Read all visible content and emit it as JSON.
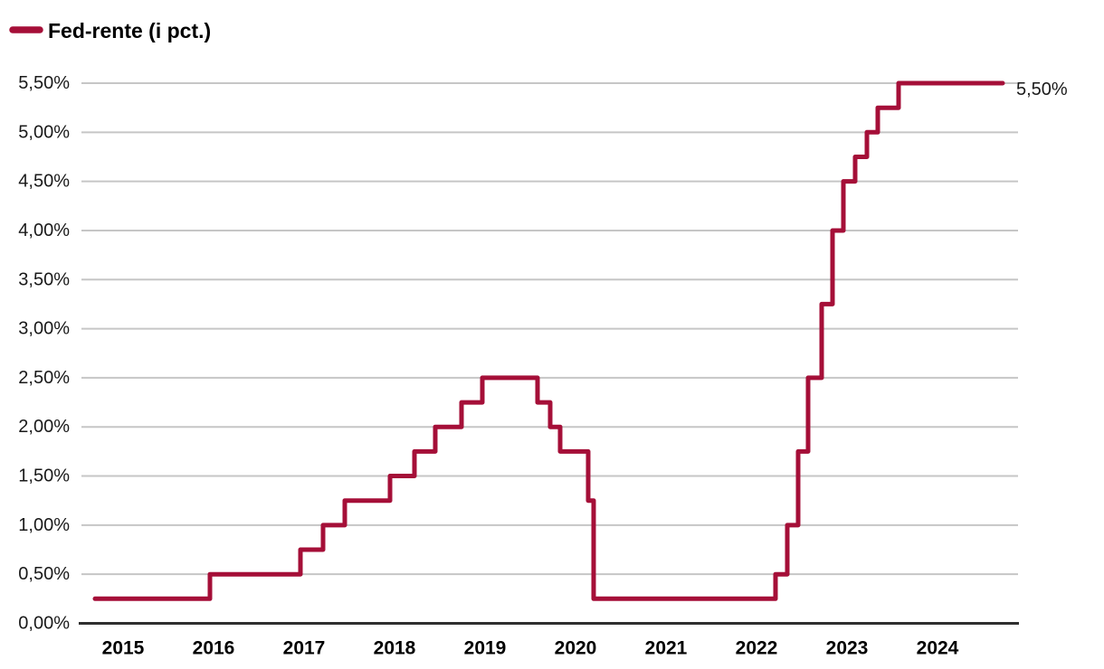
{
  "colors": {
    "line": "#A50F38",
    "grid": "#C6C6C6",
    "axis": "#2F2F2F",
    "tick_text": "#1A1A1A",
    "legend_text": "#000000"
  },
  "legend": {
    "label": "Fed-rente (i pct.)"
  },
  "chart_data": {
    "type": "line",
    "style": "step-after",
    "title": "Fed-rente (i pct.)",
    "xlabel": "",
    "ylabel": "",
    "grid": true,
    "legend_position": "top-left",
    "xlim": [
      2014.54,
      2024.89
    ],
    "ylim": [
      0,
      5.5
    ],
    "x_ticks": [
      {
        "value": 2015,
        "label": "2015"
      },
      {
        "value": 2016,
        "label": "2016"
      },
      {
        "value": 2017,
        "label": "2017"
      },
      {
        "value": 2018,
        "label": "2018"
      },
      {
        "value": 2019,
        "label": "2019"
      },
      {
        "value": 2020,
        "label": "2020"
      },
      {
        "value": 2021,
        "label": "2021"
      },
      {
        "value": 2022,
        "label": "2022"
      },
      {
        "value": 2023,
        "label": "2023"
      },
      {
        "value": 2024,
        "label": "2024"
      }
    ],
    "y_ticks": [
      {
        "value": 0.0,
        "label": "0,00%"
      },
      {
        "value": 0.5,
        "label": "0,50%"
      },
      {
        "value": 1.0,
        "label": "1,00%"
      },
      {
        "value": 1.5,
        "label": "1,50%"
      },
      {
        "value": 2.0,
        "label": "2,00%"
      },
      {
        "value": 2.5,
        "label": "2,50%"
      },
      {
        "value": 3.0,
        "label": "3,00%"
      },
      {
        "value": 3.5,
        "label": "3,50%"
      },
      {
        "value": 4.0,
        "label": "4,00%"
      },
      {
        "value": 4.5,
        "label": "4,50%"
      },
      {
        "value": 5.0,
        "label": "5,00%"
      },
      {
        "value": 5.5,
        "label": "5,50%"
      }
    ],
    "series": [
      {
        "name": "Fed-rente (i pct.)",
        "color": "#A50F38",
        "step": "after",
        "points": [
          [
            2014.69,
            0.25
          ],
          [
            2015.96,
            0.5
          ],
          [
            2016.96,
            0.75
          ],
          [
            2017.21,
            1.0
          ],
          [
            2017.45,
            1.25
          ],
          [
            2017.95,
            1.5
          ],
          [
            2018.22,
            1.75
          ],
          [
            2018.45,
            2.0
          ],
          [
            2018.74,
            2.25
          ],
          [
            2018.97,
            2.5
          ],
          [
            2019.58,
            2.25
          ],
          [
            2019.72,
            2.0
          ],
          [
            2019.83,
            1.75
          ],
          [
            2020.14,
            1.25
          ],
          [
            2020.2,
            0.25
          ],
          [
            2022.21,
            0.5
          ],
          [
            2022.34,
            1.0
          ],
          [
            2022.46,
            1.75
          ],
          [
            2022.57,
            2.5
          ],
          [
            2022.72,
            3.25
          ],
          [
            2022.84,
            4.0
          ],
          [
            2022.96,
            4.5
          ],
          [
            2023.09,
            4.75
          ],
          [
            2023.22,
            5.0
          ],
          [
            2023.34,
            5.25
          ],
          [
            2023.57,
            5.5
          ],
          [
            2024.72,
            5.5
          ]
        ]
      }
    ],
    "end_label": "5,50%"
  }
}
